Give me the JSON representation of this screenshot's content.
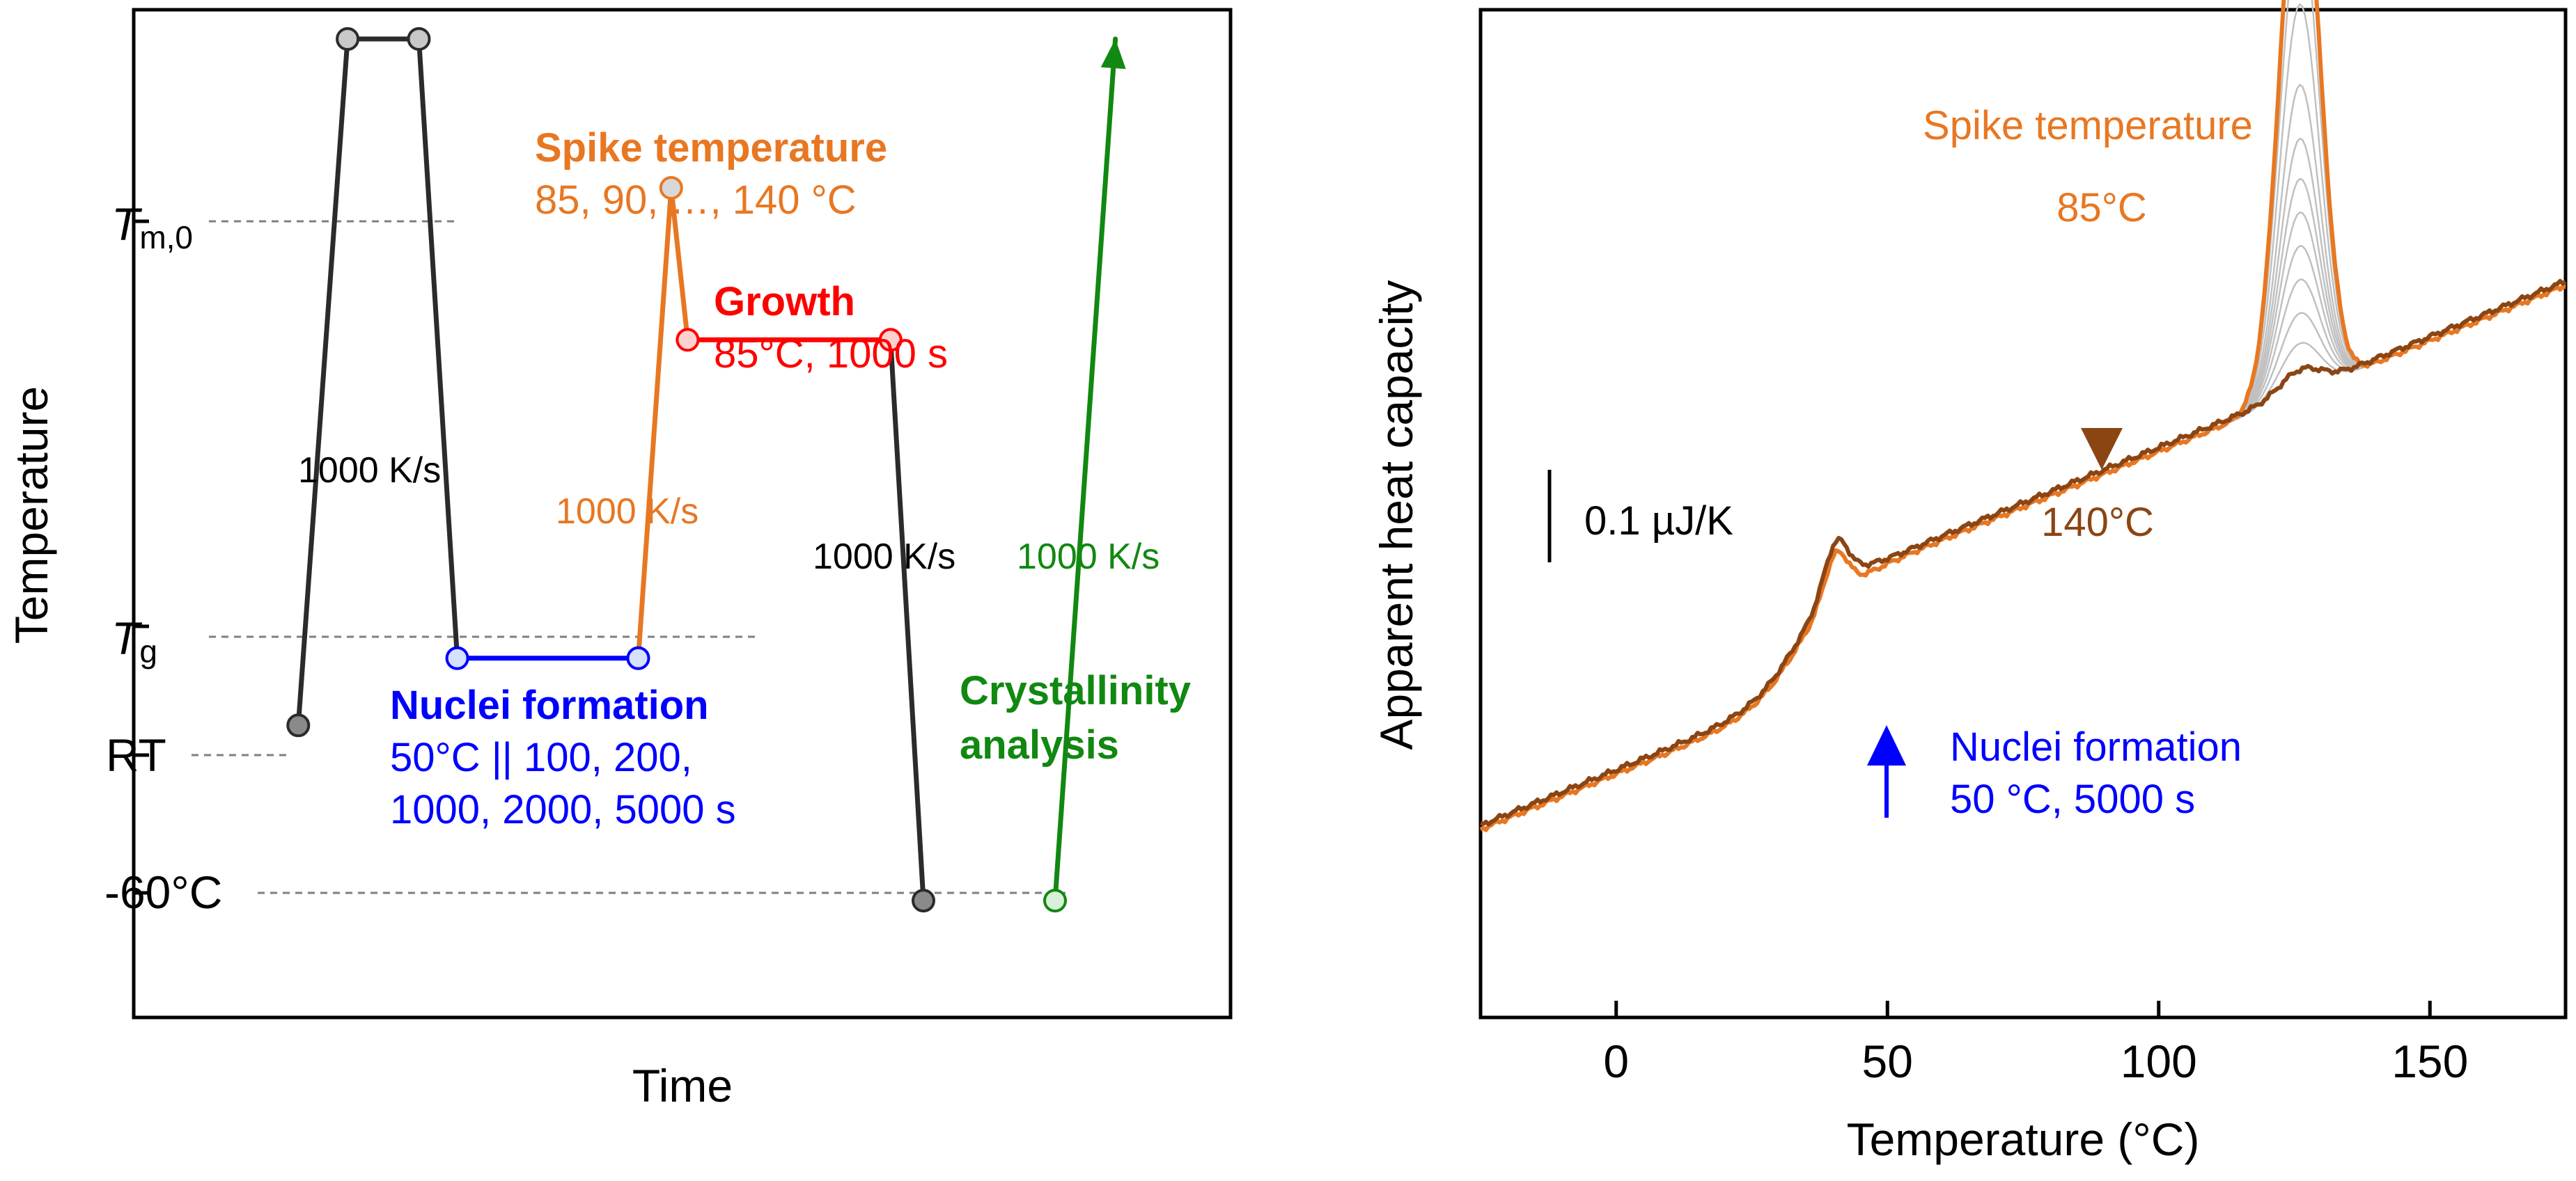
{
  "chart_data": [
    {
      "type": "line",
      "title": "",
      "xlabel": "Time",
      "ylabel": "Temperature",
      "y_levels": [
        {
          "name": "T_m0",
          "label_main": "T",
          "label_sub": "m,0",
          "value": 200
        },
        {
          "name": "T_g",
          "label_main": "T",
          "label_sub": "g",
          "value": 23
        },
        {
          "name": "RT",
          "label": "RT",
          "value": 0
        },
        {
          "name": "minus60",
          "label": "-60°C",
          "value": -60
        }
      ],
      "ylim": [
        -100,
        245
      ],
      "xlim": [
        0,
        100
      ],
      "segments": [
        {
          "name": "melt-protocol",
          "color": "#2b2b2b",
          "points": [
            [
              15,
              0
            ],
            [
              19.5,
              235
            ],
            [
              26,
              235
            ],
            [
              29.5,
              23
            ]
          ],
          "rate_label": "1000 K/s"
        },
        {
          "name": "nuclei-formation",
          "color": "#0000ff",
          "points": [
            [
              29.5,
              23
            ],
            [
              46,
              23
            ]
          ]
        },
        {
          "name": "spike",
          "color": "#e87722",
          "points": [
            [
              46,
              23
            ],
            [
              49,
              184
            ],
            [
              50.5,
              132
            ]
          ],
          "rate_label": "1000 K/s"
        },
        {
          "name": "growth",
          "color": "#ff0000",
          "points": [
            [
              50.5,
              132
            ],
            [
              69,
              132
            ]
          ]
        },
        {
          "name": "quench",
          "color": "#2b2b2b",
          "points": [
            [
              69,
              132
            ],
            [
              72,
              -60
            ]
          ],
          "rate_label": "1000 K/s"
        },
        {
          "name": "crystallinity-analysis",
          "color": "#118811",
          "points": [
            [
              84,
              -60
            ],
            [
              89.5,
              235
            ]
          ],
          "rate_label": "1000 K/s"
        }
      ],
      "annotations": {
        "spike": {
          "title": "Spike temperature",
          "detail": "85, 90, …, 140 °C",
          "color": "#e87722"
        },
        "growth": {
          "title": "Growth",
          "detail": "85°C, 1000 s",
          "color": "#ff0000"
        },
        "nuclei": {
          "title": "Nuclei formation",
          "detail1": "50°C || 100, 200,",
          "detail2": "1000, 2000, 5000 s",
          "color": "#0000ff"
        },
        "crystallinity": {
          "title1": "Crystallinity",
          "title2": "analysis",
          "color": "#118811"
        }
      }
    },
    {
      "type": "line",
      "title": "",
      "xlabel": "Temperature (°C)",
      "ylabel": "Apparent heat capacity",
      "xlim": [
        -25,
        175
      ],
      "xticks": [
        0,
        50,
        100,
        150
      ],
      "ylim": [
        0,
        1.5
      ],
      "scale_bar": {
        "label": "0.1 µJ/K",
        "value": 0.1
      },
      "series": [
        {
          "name": "85°C",
          "color": "#e87722",
          "peak": 0.82
        },
        {
          "name": "90°C",
          "color": "#c0c0c0",
          "peak": 0.7
        },
        {
          "name": "95°C",
          "color": "#c0c0c0",
          "peak": 0.58
        },
        {
          "name": "100°C",
          "color": "#c0c0c0",
          "peak": 0.46
        },
        {
          "name": "105°C",
          "color": "#c0c0c0",
          "peak": 0.38
        },
        {
          "name": "110°C",
          "color": "#c0c0c0",
          "peak": 0.32
        },
        {
          "name": "115°C",
          "color": "#c0c0c0",
          "peak": 0.27
        },
        {
          "name": "120°C",
          "color": "#c0c0c0",
          "peak": 0.22
        },
        {
          "name": "125°C",
          "color": "#c0c0c0",
          "peak": 0.17
        },
        {
          "name": "130°C",
          "color": "#c0c0c0",
          "peak": 0.12
        },
        {
          "name": "135°C",
          "color": "#c0c0c0",
          "peak": 0.075
        },
        {
          "name": "140°C",
          "color": "#8b4513",
          "peak": 0.03
        }
      ],
      "annotations": {
        "spike_title": "Spike temperature",
        "top_label": "85°C",
        "bottom_label": "140°C",
        "nuclei_title": "Nuclei formation",
        "nuclei_detail": "50 °C, 5000 s"
      },
      "colors": {
        "orange": "#e87722",
        "brown": "#8b4513",
        "blue": "#0000ff"
      }
    }
  ]
}
